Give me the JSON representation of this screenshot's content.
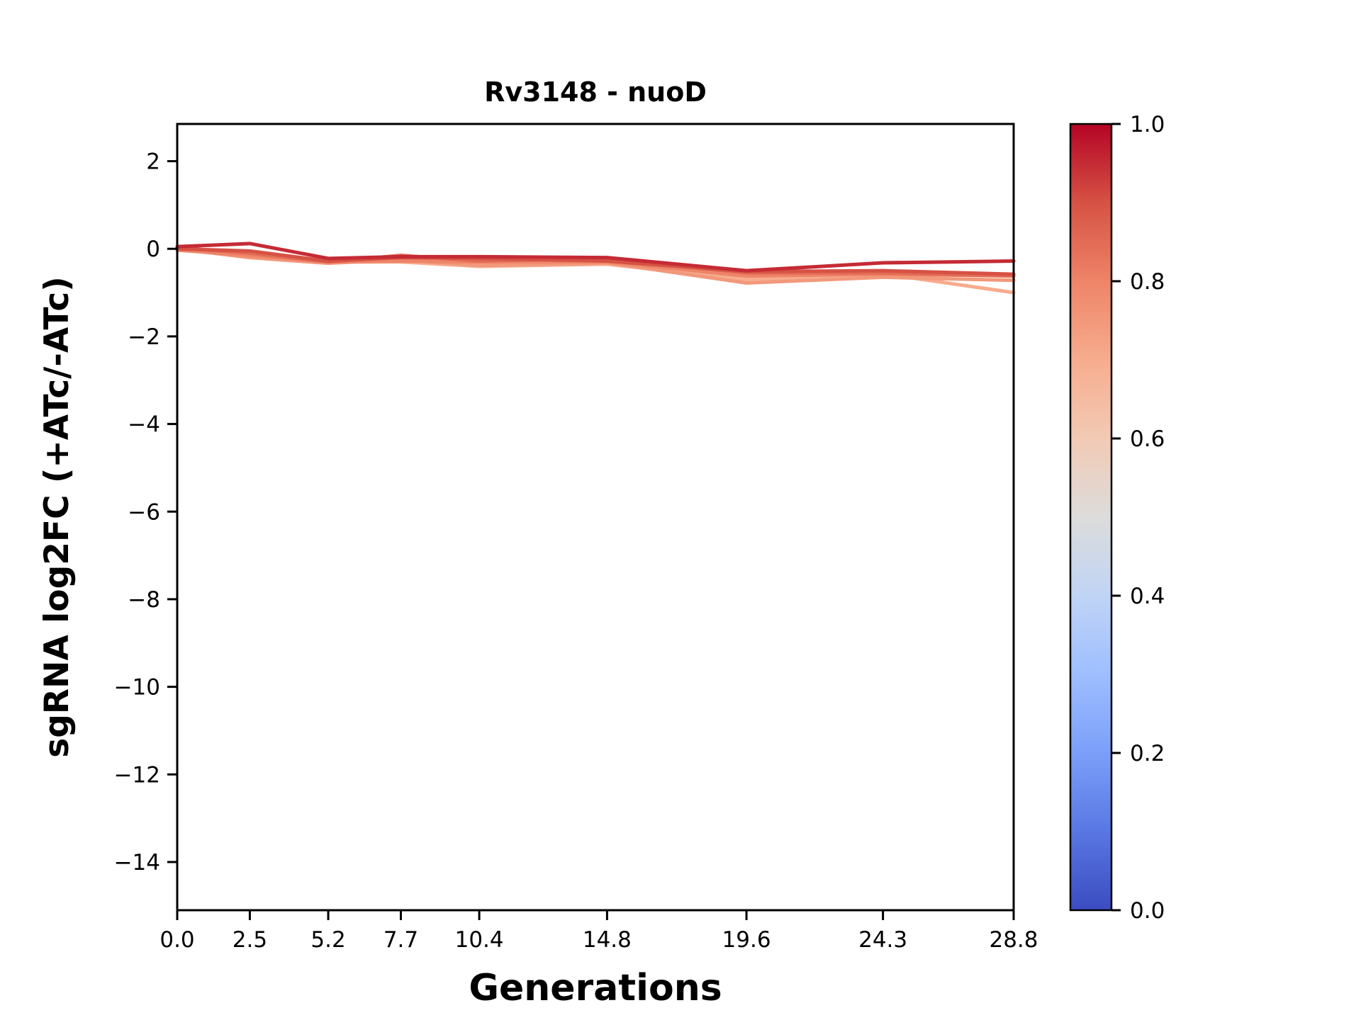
{
  "figure": {
    "title": "Rv3148 - nuoD",
    "xlabel": "Generations",
    "ylabel": "sgRNA log2FC (+ATc/-ATc)"
  },
  "chart_data": {
    "type": "line",
    "title": "Rv3148 - nuoD",
    "xlabel": "Generations",
    "ylabel": "sgRNA log2FC (+ATc/-ATc)",
    "grid": false,
    "background": "#ffffff",
    "axis_color": "#000000",
    "xlim": [
      0,
      28.8
    ],
    "ylim": [
      -15.1,
      2.85
    ],
    "x": [
      0.0,
      2.5,
      5.2,
      7.7,
      10.4,
      14.8,
      19.6,
      24.3,
      28.8
    ],
    "x_tick_labels": [
      "0.0",
      "2.5",
      "5.2",
      "7.7",
      "10.4",
      "14.8",
      "19.6",
      "24.3",
      "28.8"
    ],
    "y_ticks": [
      2,
      0,
      -2,
      -4,
      -6,
      -8,
      -10,
      -12,
      -14
    ],
    "y_tick_labels": [
      "2",
      "0",
      "−2",
      "−4",
      "−6",
      "−8",
      "−10",
      "−12",
      "−14"
    ],
    "series": [
      {
        "colormap_value": 0.95,
        "color": "#c52b35",
        "values": [
          0.05,
          0.12,
          -0.22,
          -0.18,
          -0.18,
          -0.2,
          -0.5,
          -0.32,
          -0.28
        ]
      },
      {
        "colormap_value": 0.9,
        "color": "#d65244",
        "values": [
          0.0,
          -0.05,
          -0.28,
          -0.2,
          -0.22,
          -0.28,
          -0.52,
          -0.5,
          -0.58
        ]
      },
      {
        "colormap_value": 0.85,
        "color": "#e36b56",
        "values": [
          0.02,
          -0.1,
          -0.3,
          -0.15,
          -0.28,
          -0.22,
          -0.55,
          -0.55,
          -0.62
        ]
      },
      {
        "colormap_value": 0.8,
        "color": "#ee8468",
        "values": [
          -0.03,
          -0.15,
          -0.3,
          -0.28,
          -0.3,
          -0.3,
          -0.62,
          -0.58,
          -0.62
        ]
      },
      {
        "colormap_value": 0.75,
        "color": "#f2987b",
        "values": [
          0.0,
          -0.2,
          -0.33,
          -0.25,
          -0.38,
          -0.32,
          -0.78,
          -0.65,
          -0.72
        ]
      },
      {
        "colormap_value": 0.7,
        "color": "#f7ac8e",
        "values": [
          0.04,
          -0.14,
          -0.3,
          -0.3,
          -0.4,
          -0.35,
          -0.7,
          -0.57,
          -1.0
        ]
      }
    ],
    "colorbar": {
      "cmap": "coolwarm",
      "min": 0.0,
      "max": 1.0,
      "tick_values": [
        1.0,
        0.8,
        0.6,
        0.4,
        0.2,
        0.0
      ],
      "tick_labels": [
        "1.0",
        "0.8",
        "0.6",
        "0.4",
        "0.2",
        "0.0"
      ],
      "gradient_stops": [
        {
          "value": 0.0,
          "color": "#3b4cc0"
        },
        {
          "value": 0.1,
          "color": "#5977e3"
        },
        {
          "value": 0.2,
          "color": "#7b9ff9"
        },
        {
          "value": 0.3,
          "color": "#9ebeff"
        },
        {
          "value": 0.4,
          "color": "#c0d4f5"
        },
        {
          "value": 0.5,
          "color": "#dddcdb"
        },
        {
          "value": 0.6,
          "color": "#f2cab5"
        },
        {
          "value": 0.7,
          "color": "#f7ac8e"
        },
        {
          "value": 0.8,
          "color": "#ee8468"
        },
        {
          "value": 0.9,
          "color": "#d65244"
        },
        {
          "value": 1.0,
          "color": "#b40426"
        }
      ]
    }
  }
}
